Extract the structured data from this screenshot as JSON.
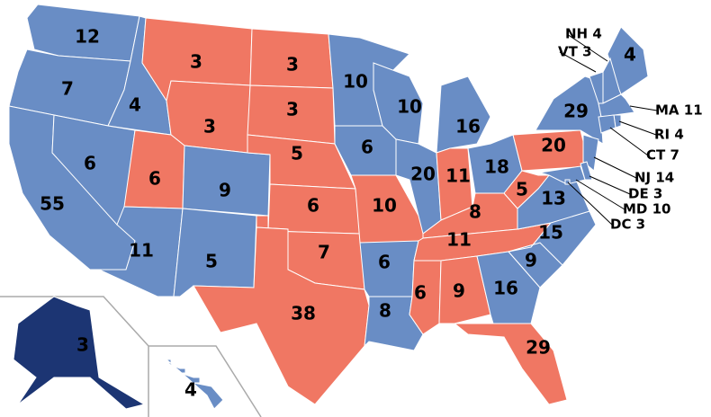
{
  "regions": [
    {
      "label": 12,
      "color": "#698dc5"
    },
    {
      "label": 7,
      "color": "#698dc5"
    },
    {
      "label": 55,
      "color": "#698dc5"
    },
    {
      "label": 4,
      "color": "#698dc5"
    },
    {
      "label": 6,
      "color": "#698dc5"
    },
    {
      "label": 3,
      "color": "#f07763"
    },
    {
      "label": 3,
      "color": "#f07763"
    },
    {
      "label": 6,
      "color": "#f07763"
    },
    {
      "label": 9,
      "color": "#698dc5"
    },
    {
      "label": 11,
      "color": "#698dc5"
    },
    {
      "label": 5,
      "color": "#698dc5"
    },
    {
      "label": 3,
      "color": "#f07763"
    },
    {
      "label": 3,
      "color": "#f07763"
    },
    {
      "label": 5,
      "color": "#f07763"
    },
    {
      "label": 6,
      "color": "#f07763"
    },
    {
      "label": 7,
      "color": "#f07763"
    },
    {
      "label": 38,
      "color": "#f07763"
    },
    {
      "label": 10,
      "color": "#698dc5"
    },
    {
      "label": 6,
      "color": "#698dc5"
    },
    {
      "label": 10,
      "color": "#f07763"
    },
    {
      "label": 6,
      "color": "#698dc5"
    },
    {
      "label": 8,
      "color": "#698dc5"
    },
    {
      "label": 10,
      "color": "#698dc5"
    },
    {
      "label": 20,
      "color": "#698dc5"
    },
    {
      "label": 16,
      "color": "#698dc5"
    },
    {
      "label": 11,
      "color": "#f07763"
    },
    {
      "label": 18,
      "color": "#698dc5"
    },
    {
      "label": 8,
      "color": "#f07763"
    },
    {
      "label": 11,
      "color": "#f07763"
    },
    {
      "label": 6,
      "color": "#f07763"
    },
    {
      "label": 9,
      "color": "#f07763"
    },
    {
      "label": 16,
      "color": "#698dc5"
    },
    {
      "label": 29,
      "color": "#f07763"
    },
    {
      "label": 9,
      "color": "#698dc5"
    },
    {
      "label": 15,
      "color": "#698dc5"
    },
    {
      "label": 13,
      "color": "#698dc5"
    },
    {
      "label": 5,
      "color": "#f07763"
    },
    {
      "label": 20,
      "color": "#f07763"
    },
    {
      "label": 29,
      "color": "#698dc5"
    },
    {
      "label": 4,
      "color": "#698dc5"
    },
    {
      "label": "VT 3",
      "color": "#698dc5"
    },
    {
      "label": "NH 4",
      "color": "#698dc5"
    },
    {
      "label": "MA 11",
      "color": "#698dc5"
    },
    {
      "label": "RI 4",
      "color": "#698dc5"
    },
    {
      "label": "CT 7",
      "color": "#698dc5"
    },
    {
      "label": "NJ 14",
      "color": "#698dc5"
    },
    {
      "label": "DE 3",
      "color": "#698dc5"
    },
    {
      "label": "MD 10",
      "color": "#698dc5"
    },
    {
      "label": "DC 3",
      "color": "#698dc5"
    },
    {
      "label": 3,
      "color": "#1c3573"
    },
    {
      "label": 4,
      "color": "#698dc5"
    }
  ]
}
